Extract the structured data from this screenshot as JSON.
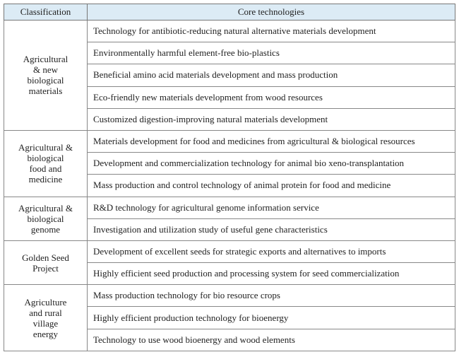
{
  "header": [
    "Classification",
    "Core technologies"
  ],
  "groups": [
    {
      "classification": [
        "Agricultural",
        "& new",
        "biological",
        "materials"
      ],
      "technologies": [
        "Technology for antibiotic-reducing natural alternative materials development",
        "Environmentally harmful element-free bio-plastics",
        "Beneficial amino acid materials development and mass production",
        "Eco-friendly new materials development from wood resources",
        "Customized digestion-improving natural materials development"
      ]
    },
    {
      "classification": [
        "Agricultural &",
        "biological",
        "food and",
        "medicine"
      ],
      "technologies": [
        "Materials development for food and medicines from agricultural & biological resources",
        "Development and commercialization technology for animal bio xeno-transplantation",
        "Mass production and control technology of animal protein for food and medicine"
      ]
    },
    {
      "classification": [
        "Agricultural &",
        "biological",
        "genome"
      ],
      "technologies": [
        "R&D technology for agricultural genome information service",
        "Investigation and utilization study of useful gene characteristics"
      ]
    },
    {
      "classification": [
        "Golden Seed",
        "Project"
      ],
      "technologies": [
        "Development of excellent seeds for strategic exports and alternatives to imports",
        "Highly efficient seed production and processing system for seed commercialization"
      ]
    },
    {
      "classification": [
        "Agriculture",
        "and rural",
        "village",
        "energy"
      ],
      "technologies": [
        "Mass production technology for bio resource crops",
        "Highly efficient production technology for bioenergy",
        "Technology to use wood bioenergy and wood elements"
      ]
    }
  ]
}
